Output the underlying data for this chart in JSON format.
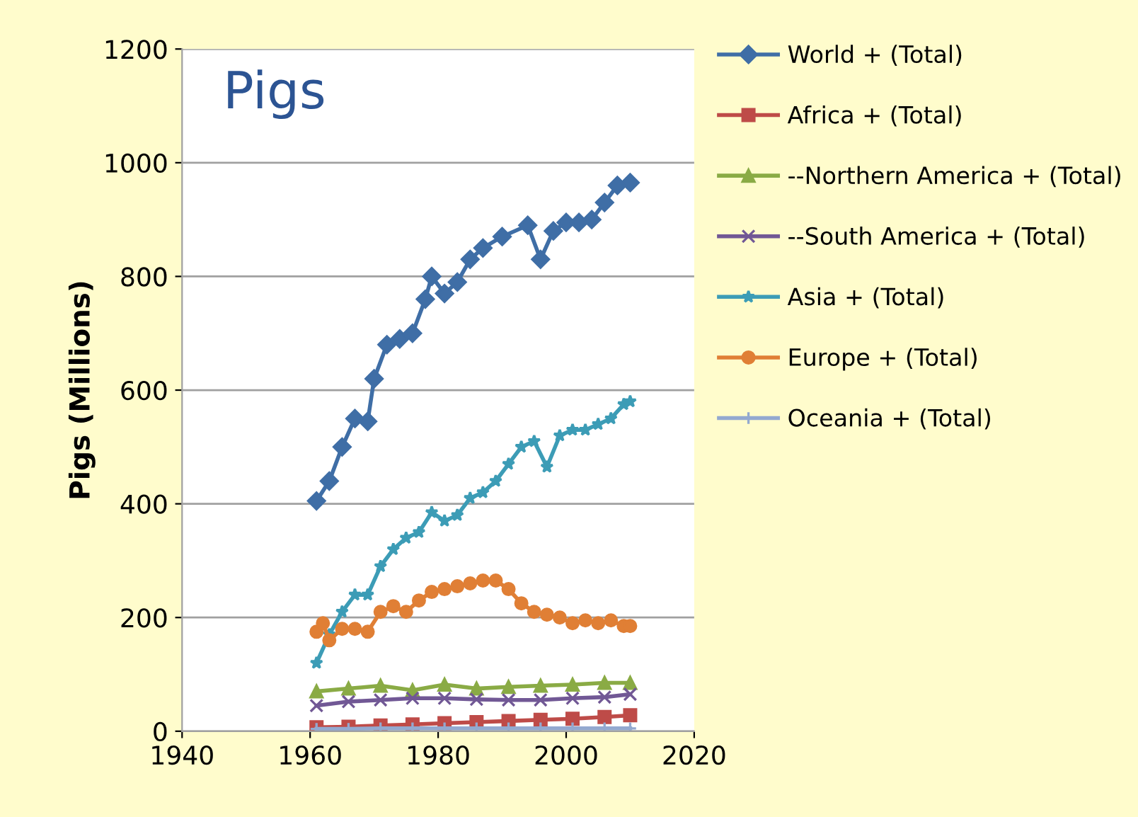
{
  "chart_data": {
    "type": "line",
    "title": "Pigs",
    "ylabel": "Pigs (Millions)",
    "xlim": [
      1940,
      2020
    ],
    "xticks": [
      1940,
      1960,
      1980,
      2000,
      2020
    ],
    "ylim": [
      0,
      1200
    ],
    "yticks": [
      0,
      200,
      400,
      600,
      800,
      1000,
      1200
    ],
    "grid": "y",
    "legend": "right",
    "series": [
      {
        "name": "World + (Total)",
        "color": "#3f6ea6",
        "marker": "diamond",
        "x": [
          1961,
          1963,
          1965,
          1967,
          1969,
          1970,
          1972,
          1974,
          1976,
          1978,
          1979,
          1981,
          1983,
          1985,
          1987,
          1990,
          1994,
          1996,
          1998,
          2000,
          2002,
          2004,
          2006,
          2008,
          2010
        ],
        "values": [
          405,
          440,
          500,
          550,
          545,
          620,
          680,
          690,
          700,
          760,
          800,
          770,
          790,
          830,
          850,
          870,
          890,
          830,
          880,
          895,
          895,
          900,
          930,
          960,
          965
        ]
      },
      {
        "name": "Africa + (Total)",
        "color": "#be4b48",
        "marker": "square",
        "x": [
          1961,
          1966,
          1971,
          1976,
          1981,
          1986,
          1991,
          1996,
          2001,
          2006,
          2010
        ],
        "values": [
          7,
          8,
          10,
          12,
          14,
          16,
          18,
          20,
          22,
          25,
          28
        ]
      },
      {
        "name": "--Northern America + (Total)",
        "color": "#8aab45",
        "marker": "triangle",
        "x": [
          1961,
          1966,
          1971,
          1976,
          1981,
          1986,
          1991,
          1996,
          2001,
          2006,
          2010
        ],
        "values": [
          70,
          75,
          80,
          72,
          82,
          75,
          78,
          80,
          82,
          85,
          85
        ]
      },
      {
        "name": "--South America + (Total)",
        "color": "#715895",
        "marker": "cross",
        "x": [
          1961,
          1966,
          1971,
          1976,
          1981,
          1986,
          1991,
          1996,
          2001,
          2006,
          2010
        ],
        "values": [
          45,
          52,
          55,
          58,
          58,
          56,
          55,
          55,
          58,
          60,
          65
        ]
      },
      {
        "name": "Asia + (Total)",
        "color": "#3c9cb6",
        "marker": "star",
        "x": [
          1961,
          1963,
          1965,
          1967,
          1969,
          1971,
          1973,
          1975,
          1977,
          1979,
          1981,
          1983,
          1985,
          1987,
          1989,
          1991,
          1993,
          1995,
          1997,
          1999,
          2001,
          2003,
          2005,
          2007,
          2009,
          2010
        ],
        "values": [
          120,
          170,
          210,
          240,
          240,
          290,
          320,
          340,
          350,
          385,
          370,
          380,
          410,
          420,
          440,
          470,
          500,
          510,
          465,
          520,
          530,
          530,
          540,
          550,
          575,
          580
        ]
      },
      {
        "name": "Europe + (Total)",
        "color": "#e07f35",
        "marker": "circle",
        "x": [
          1961,
          1962,
          1963,
          1965,
          1967,
          1969,
          1971,
          1973,
          1975,
          1977,
          1979,
          1981,
          1983,
          1985,
          1987,
          1989,
          1991,
          1993,
          1995,
          1997,
          1999,
          2001,
          2003,
          2005,
          2007,
          2009,
          2010
        ],
        "values": [
          175,
          190,
          160,
          180,
          180,
          175,
          210,
          220,
          210,
          230,
          245,
          250,
          255,
          260,
          265,
          265,
          250,
          225,
          210,
          205,
          200,
          190,
          195,
          190,
          195,
          185,
          185
        ]
      },
      {
        "name": "Oceania + (Total)",
        "color": "#93a9d0",
        "marker": "plus",
        "x": [
          1961,
          1966,
          1971,
          1976,
          1981,
          1986,
          1991,
          1996,
          2001,
          2006,
          2010
        ],
        "values": [
          4,
          4,
          5,
          5,
          5,
          5,
          5,
          5,
          5,
          5,
          5
        ]
      }
    ]
  }
}
